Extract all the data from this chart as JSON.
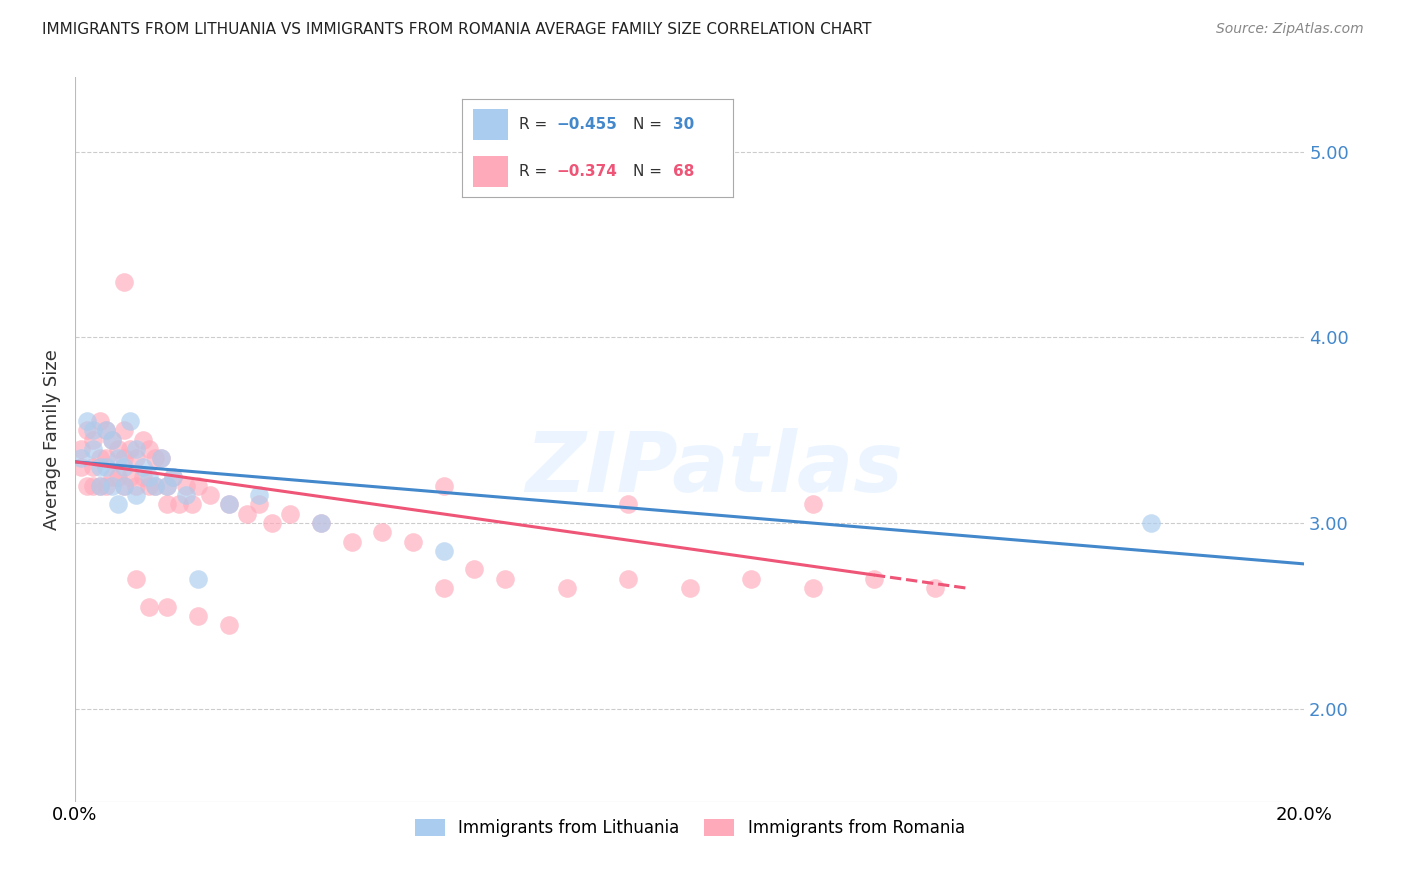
{
  "title": "IMMIGRANTS FROM LITHUANIA VS IMMIGRANTS FROM ROMANIA AVERAGE FAMILY SIZE CORRELATION CHART",
  "source": "Source: ZipAtlas.com",
  "ylabel": "Average Family Size",
  "yticks": [
    2.0,
    3.0,
    4.0,
    5.0
  ],
  "xlim": [
    0.0,
    0.2
  ],
  "ylim": [
    1.5,
    5.4
  ],
  "watermark": "ZIPatlas",
  "color_lithuania": "#aaccee",
  "color_romania": "#ffaabb",
  "color_trendline_lithuania": "#4488cc",
  "color_trendline_romania": "#ee5577",
  "lithuania_x": [
    0.001,
    0.002,
    0.003,
    0.003,
    0.004,
    0.004,
    0.005,
    0.005,
    0.006,
    0.006,
    0.007,
    0.007,
    0.008,
    0.008,
    0.009,
    0.01,
    0.01,
    0.011,
    0.012,
    0.013,
    0.014,
    0.015,
    0.016,
    0.018,
    0.02,
    0.025,
    0.03,
    0.04,
    0.06,
    0.175
  ],
  "lithuania_y": [
    3.35,
    3.55,
    3.5,
    3.4,
    3.3,
    3.2,
    3.5,
    3.3,
    3.45,
    3.2,
    3.35,
    3.1,
    3.3,
    3.2,
    3.55,
    3.4,
    3.15,
    3.3,
    3.25,
    3.2,
    3.35,
    3.2,
    3.25,
    3.15,
    2.7,
    3.1,
    3.15,
    3.0,
    2.85,
    3.0
  ],
  "romania_x": [
    0.001,
    0.001,
    0.002,
    0.002,
    0.003,
    0.003,
    0.003,
    0.004,
    0.004,
    0.004,
    0.005,
    0.005,
    0.005,
    0.006,
    0.006,
    0.007,
    0.007,
    0.008,
    0.008,
    0.008,
    0.009,
    0.009,
    0.01,
    0.01,
    0.011,
    0.011,
    0.012,
    0.012,
    0.013,
    0.013,
    0.014,
    0.015,
    0.015,
    0.016,
    0.017,
    0.018,
    0.019,
    0.02,
    0.022,
    0.025,
    0.028,
    0.03,
    0.032,
    0.035,
    0.04,
    0.045,
    0.05,
    0.055,
    0.06,
    0.065,
    0.07,
    0.08,
    0.09,
    0.1,
    0.11,
    0.12,
    0.13,
    0.14,
    0.008,
    0.01,
    0.012,
    0.015,
    0.02,
    0.025,
    0.06,
    0.09,
    0.12
  ],
  "romania_y": [
    3.4,
    3.3,
    3.5,
    3.2,
    3.45,
    3.3,
    3.2,
    3.55,
    3.35,
    3.2,
    3.5,
    3.35,
    3.2,
    3.45,
    3.25,
    3.4,
    3.25,
    3.5,
    3.35,
    3.2,
    3.4,
    3.25,
    3.35,
    3.2,
    3.45,
    3.25,
    3.4,
    3.2,
    3.35,
    3.2,
    3.35,
    3.2,
    3.1,
    3.25,
    3.1,
    3.2,
    3.1,
    3.2,
    3.15,
    3.1,
    3.05,
    3.1,
    3.0,
    3.05,
    3.0,
    2.9,
    2.95,
    2.9,
    2.65,
    2.75,
    2.7,
    2.65,
    2.7,
    2.65,
    2.7,
    2.65,
    2.7,
    2.65,
    4.3,
    2.7,
    2.55,
    2.55,
    2.5,
    2.45,
    3.2,
    3.1,
    3.1
  ],
  "lit_trend_x": [
    0.0,
    0.2
  ],
  "lit_trend_y": [
    3.33,
    2.78
  ],
  "rom_trend_x": [
    0.0,
    0.145
  ],
  "rom_trend_y": [
    3.33,
    2.65
  ]
}
